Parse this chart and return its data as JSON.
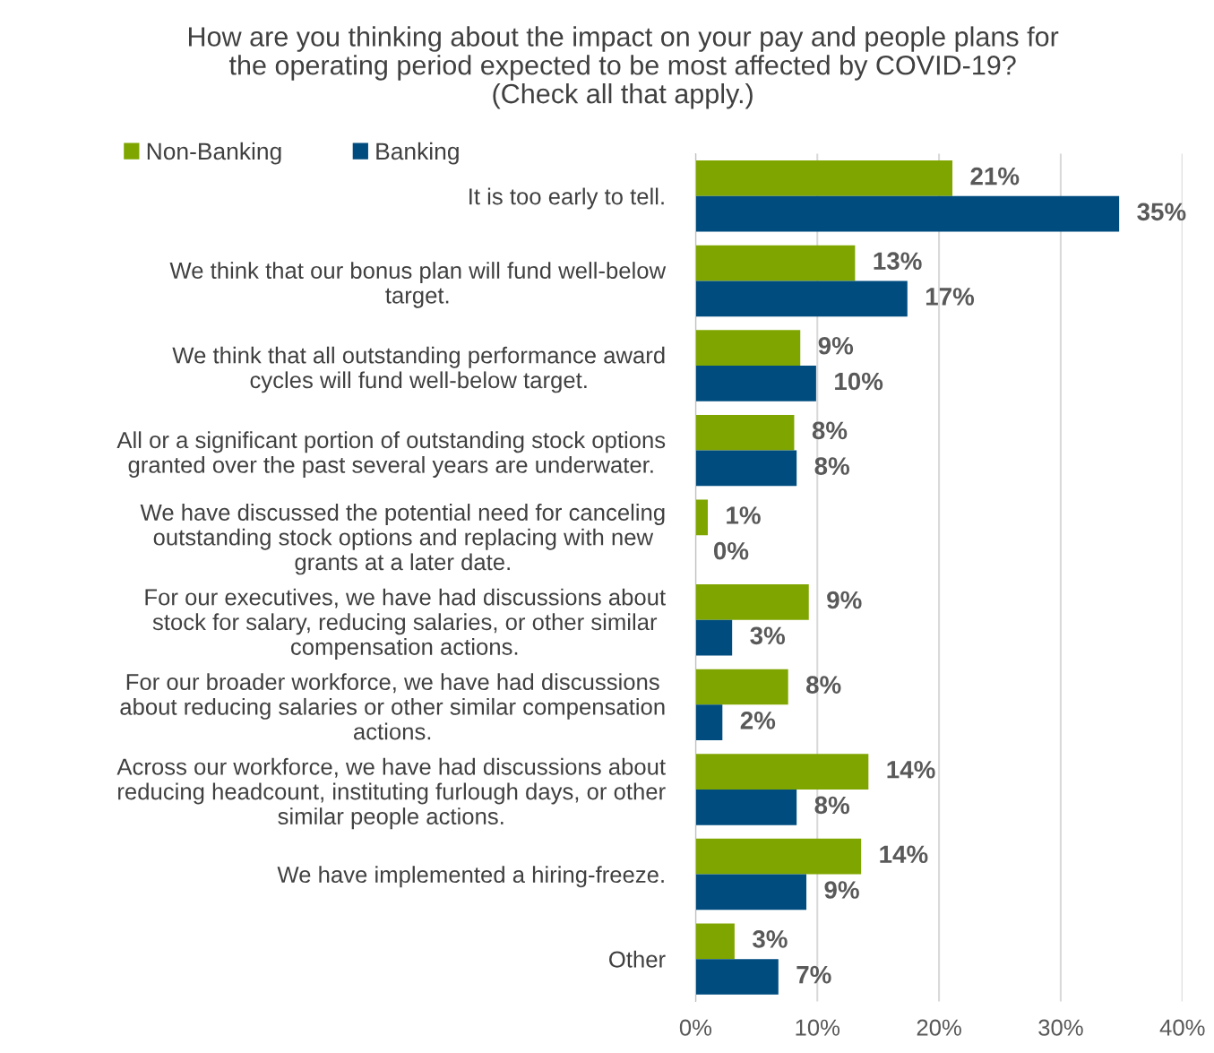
{
  "chart_data": {
    "type": "bar",
    "orientation": "horizontal",
    "title": "How are you thinking about the impact on your pay and people plans for\nthe operating period expected to be most affected by COVID-19?\n(Check all that apply.)",
    "categories": [
      "It is too early to tell.",
      "We think that our bonus plan will fund well-below\ntarget.",
      "We think that all outstanding performance award\ncycles will fund well-below target.",
      "All or a significant portion of outstanding stock options\ngranted over the past several years are underwater.",
      "We have discussed the potential need for canceling\noutstanding stock options and replacing with new\ngrants at a later date.",
      "For our executives, we have had discussions about\nstock for salary, reducing salaries, or other similar\ncompensation actions.",
      "For our broader workforce, we have had discussions\nabout reducing salaries or other similar compensation\nactions.",
      "Across our workforce, we have had discussions about\nreducing headcount, instituting furlough days, or other\nsimilar people actions.",
      "We have implemented a hiring-freeze.",
      "Other"
    ],
    "series": [
      {
        "name": "Non-Banking",
        "color": "#7fa600",
        "values": [
          21.1,
          13.1,
          8.6,
          8.1,
          1.0,
          9.3,
          7.6,
          14.2,
          13.6,
          3.2
        ],
        "value_labels": [
          "21%",
          "13%",
          "9%",
          "8%",
          "1%",
          "9%",
          "8%",
          "14%",
          "14%",
          "3%"
        ]
      },
      {
        "name": "Banking",
        "color": "#004c7f",
        "values": [
          34.8,
          17.4,
          9.9,
          8.3,
          0,
          3.0,
          2.2,
          8.3,
          9.1,
          6.8
        ],
        "value_labels": [
          "35%",
          "17%",
          "10%",
          "8%",
          "0%",
          "3%",
          "2%",
          "8%",
          "9%",
          "7%"
        ]
      }
    ],
    "xlim": [
      0,
      40
    ],
    "xticks": [
      {
        "value": 0,
        "label": "0%"
      },
      {
        "value": 10,
        "label": "10%"
      },
      {
        "value": 20,
        "label": "20%"
      },
      {
        "value": 30,
        "label": "30%"
      },
      {
        "value": 40,
        "label": "40%"
      }
    ],
    "grid": "x",
    "legend": "top left"
  }
}
